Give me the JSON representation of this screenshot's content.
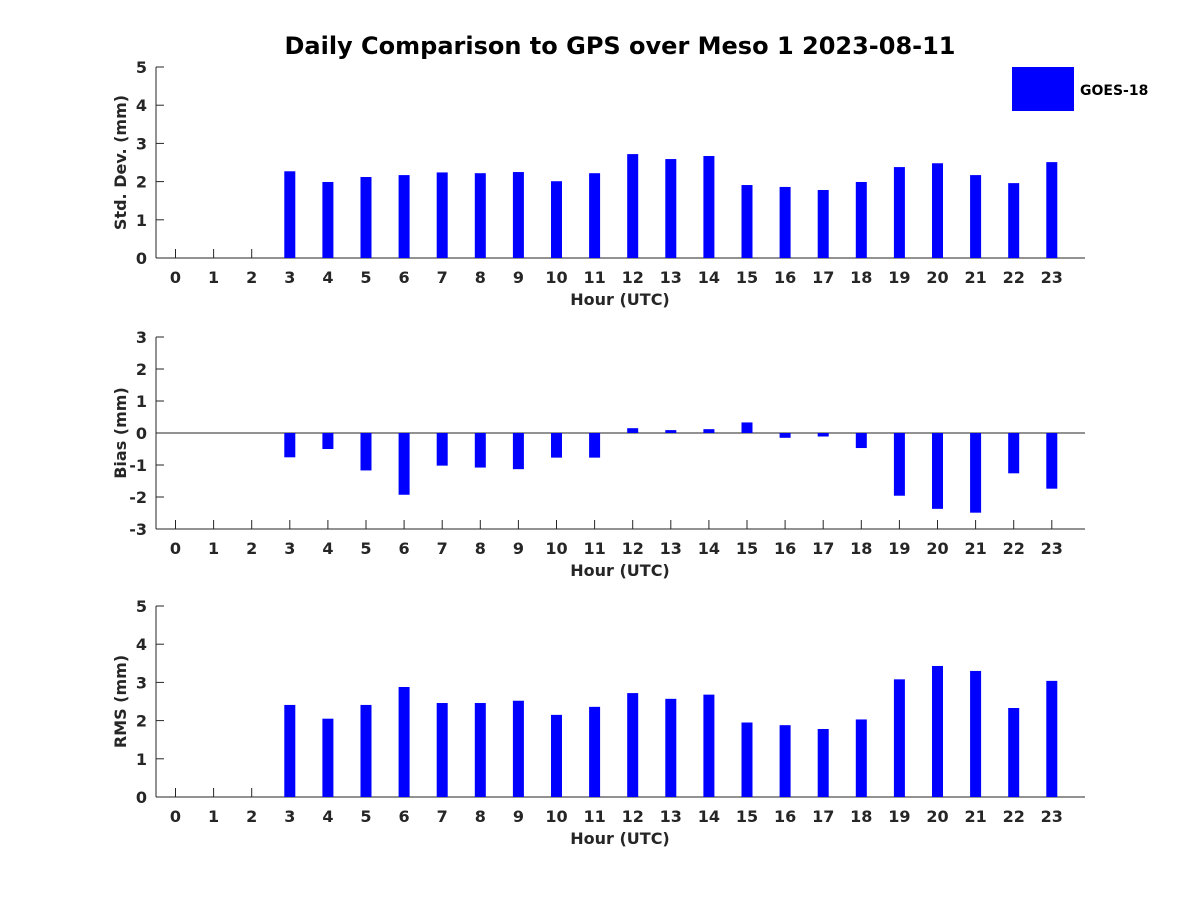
{
  "title": "Daily Comparison to GPS over Meso 1 2023-08-11",
  "legend": {
    "label": "GOES-18",
    "color": "#0000ff",
    "position": "top-right"
  },
  "chart_data": [
    {
      "type": "bar",
      "xlabel": "Hour (UTC)",
      "ylabel": "Std. Dev. (mm)",
      "ylim": [
        0,
        5
      ],
      "yticks": [
        0,
        1,
        2,
        3,
        4,
        5
      ],
      "categories": [
        "0",
        "1",
        "2",
        "3",
        "4",
        "5",
        "6",
        "7",
        "8",
        "9",
        "10",
        "11",
        "12",
        "13",
        "14",
        "15",
        "16",
        "17",
        "18",
        "19",
        "20",
        "21",
        "22",
        "23"
      ],
      "series": [
        {
          "name": "GOES-18",
          "color": "#0000ff",
          "values": [
            null,
            null,
            null,
            2.27,
            1.99,
            2.12,
            2.17,
            2.24,
            2.22,
            2.25,
            2.01,
            2.22,
            2.72,
            2.59,
            2.67,
            1.91,
            1.86,
            1.78,
            1.99,
            2.38,
            2.48,
            2.17,
            1.96,
            2.51
          ]
        }
      ]
    },
    {
      "type": "bar",
      "xlabel": "Hour (UTC)",
      "ylabel": "Bias (mm)",
      "ylim": [
        -3,
        3
      ],
      "yticks": [
        -3,
        -2,
        -1,
        0,
        1,
        2,
        3
      ],
      "categories": [
        "0",
        "1",
        "2",
        "3",
        "4",
        "5",
        "6",
        "7",
        "8",
        "9",
        "10",
        "11",
        "12",
        "13",
        "14",
        "15",
        "16",
        "17",
        "18",
        "19",
        "20",
        "21",
        "22",
        "23"
      ],
      "series": [
        {
          "name": "GOES-18",
          "color": "#0000ff",
          "values": [
            null,
            null,
            null,
            -0.76,
            -0.5,
            -1.17,
            -1.93,
            -1.02,
            -1.08,
            -1.13,
            -0.77,
            -0.77,
            0.15,
            0.09,
            0.12,
            0.33,
            -0.15,
            -0.11,
            -0.47,
            -1.96,
            -2.37,
            -2.49,
            -1.26,
            -1.74
          ]
        }
      ]
    },
    {
      "type": "bar",
      "xlabel": "Hour (UTC)",
      "ylabel": "RMS (mm)",
      "ylim": [
        0,
        5
      ],
      "yticks": [
        0,
        1,
        2,
        3,
        4,
        5
      ],
      "categories": [
        "0",
        "1",
        "2",
        "3",
        "4",
        "5",
        "6",
        "7",
        "8",
        "9",
        "10",
        "11",
        "12",
        "13",
        "14",
        "15",
        "16",
        "17",
        "18",
        "19",
        "20",
        "21",
        "22",
        "23"
      ],
      "series": [
        {
          "name": "GOES-18",
          "color": "#0000ff",
          "values": [
            null,
            null,
            null,
            2.41,
            2.05,
            2.41,
            2.88,
            2.46,
            2.46,
            2.52,
            2.15,
            2.36,
            2.72,
            2.57,
            2.68,
            1.95,
            1.88,
            1.78,
            2.03,
            3.08,
            3.43,
            3.3,
            2.33,
            3.04
          ]
        }
      ]
    }
  ]
}
